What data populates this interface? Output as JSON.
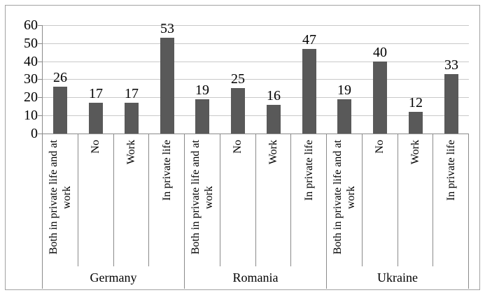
{
  "chart_data": {
    "type": "bar",
    "title": "",
    "xlabel": "",
    "ylabel": "",
    "ylim": [
      0,
      60
    ],
    "yticks": [
      0,
      10,
      20,
      30,
      40,
      50,
      60
    ],
    "grid": "horizontal",
    "legend_position": "none",
    "categories": [
      "Both in private life and at work",
      "No",
      "Work",
      "In private life"
    ],
    "series": [
      {
        "name": "Germany",
        "values": [
          26,
          17,
          17,
          53
        ]
      },
      {
        "name": "Romania",
        "values": [
          19,
          25,
          16,
          47
        ]
      },
      {
        "name": "Ukraine",
        "values": [
          19,
          40,
          12,
          33
        ]
      }
    ]
  },
  "colors": {
    "bar": "#595959",
    "gridline": "#c8c8c8",
    "axis": "#8a8a8a",
    "frame_border": "#a3a3a3",
    "text": "#000000",
    "background": "#ffffff"
  }
}
